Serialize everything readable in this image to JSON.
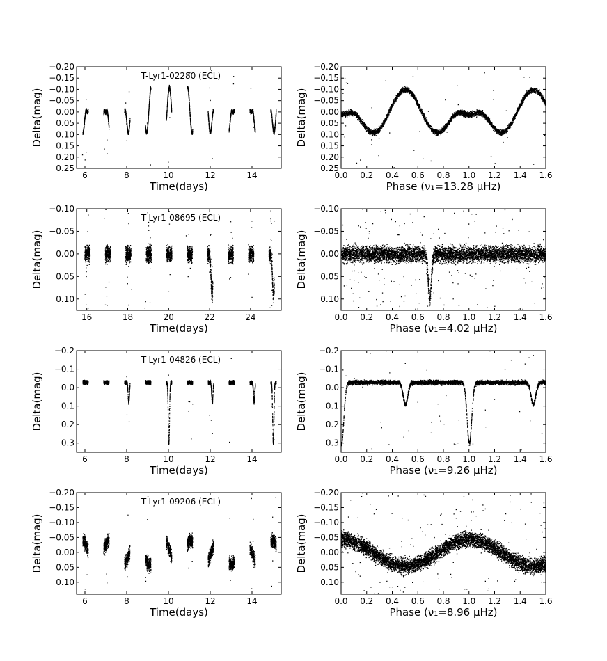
{
  "chart_data": [
    {
      "type": "scatter",
      "panel": "time",
      "star_label": "T-Lyr1-02280 (ECL)",
      "xlabel": "Time(days)",
      "ylabel": "Delta(mag)",
      "xlim": [
        5.6,
        15.4
      ],
      "ylim": [
        0.25,
        -0.2
      ],
      "xticks": [
        6,
        8,
        10,
        12,
        14
      ],
      "xtick_labels": [
        "6",
        "8",
        "10",
        "12",
        "14"
      ],
      "yticks": [
        -0.2,
        -0.15,
        -0.1,
        -0.05,
        0.0,
        0.05,
        0.1,
        0.15,
        0.2,
        0.25
      ],
      "ytick_labels": [
        "−0.20",
        "−0.15",
        "−0.10",
        "−0.05",
        "0.00",
        "0.05",
        "0.10",
        "0.15",
        "0.20",
        "0.25"
      ],
      "observing_nights": [
        6.0,
        7.0,
        8.0,
        9.0,
        10.0,
        11.0,
        12.0,
        13.0,
        14.0,
        15.0
      ],
      "light_curve": {
        "period_days": 0.8715,
        "max_brightness": -0.11,
        "primary_min_depth": 0.2,
        "secondary_min_depth": 0.09,
        "scatter": 0.006
      },
      "grid": false
    },
    {
      "type": "scatter",
      "panel": "phase",
      "xlabel": "Phase (ν₁=13.28 μHz)",
      "ylabel": "Delta(mag)",
      "xlim": [
        0.0,
        1.6
      ],
      "ylim": [
        0.25,
        -0.2
      ],
      "xticks": [
        0.0,
        0.2,
        0.4,
        0.6,
        0.8,
        1.0,
        1.2,
        1.4,
        1.6
      ],
      "xtick_labels": [
        "0.0",
        "0.2",
        "0.4",
        "0.6",
        "0.8",
        "1.0",
        "1.2",
        "1.4",
        "1.6"
      ],
      "yticks": [
        -0.2,
        -0.15,
        -0.1,
        -0.05,
        0.0,
        0.05,
        0.1,
        0.15,
        0.2,
        0.25
      ],
      "ytick_labels": [
        "−0.20",
        "−0.15",
        "−0.10",
        "−0.05",
        "0.00",
        "0.05",
        "0.10",
        "0.15",
        "0.20",
        "0.25"
      ],
      "light_curve": {
        "max_brightness": -0.1,
        "primary_min_depth": 0.2,
        "secondary_min_depth": 0.09,
        "scatter": 0.008,
        "outlier_fraction": 0.01
      },
      "grid": false
    },
    {
      "type": "scatter",
      "panel": "time",
      "star_label": "T-Lyr1-08695 (ECL)",
      "xlabel": "Time(days)",
      "ylabel": "Delta(mag)",
      "xlim": [
        15.5,
        25.5
      ],
      "ylim": [
        0.125,
        -0.1
      ],
      "xticks": [
        16,
        18,
        20,
        22,
        24
      ],
      "xtick_labels": [
        "16",
        "18",
        "20",
        "22",
        "24"
      ],
      "yticks": [
        -0.1,
        -0.05,
        0.0,
        0.05,
        0.1
      ],
      "ytick_labels": [
        "−0.10",
        "−0.05",
        "0.00",
        "0.05",
        "0.10"
      ],
      "observing_nights": [
        16.0,
        17.0,
        18.0,
        19.0,
        20.0,
        21.0,
        22.0,
        23.0,
        24.0,
        25.0
      ],
      "light_curve": {
        "baseline": 0.0,
        "scatter": 0.012,
        "eclipse_depth": 0.09,
        "eclipse_nights": [
          22.0,
          25.0
        ],
        "outlier_fraction": 0.03
      },
      "grid": false
    },
    {
      "type": "scatter",
      "panel": "phase",
      "xlabel": "Phase (ν₁=4.02 μHz)",
      "ylabel": "Delta(mag)",
      "xlim": [
        0.0,
        1.6
      ],
      "ylim": [
        0.125,
        -0.1
      ],
      "xticks": [
        0.0,
        0.2,
        0.4,
        0.6,
        0.8,
        1.0,
        1.2,
        1.4,
        1.6
      ],
      "xtick_labels": [
        "0.0",
        "0.2",
        "0.4",
        "0.6",
        "0.8",
        "1.0",
        "1.2",
        "1.4",
        "1.6"
      ],
      "yticks": [
        -0.1,
        -0.05,
        0.0,
        0.05,
        0.1
      ],
      "ytick_labels": [
        "−0.10",
        "−0.05",
        "0.00",
        "0.05",
        "0.10"
      ],
      "light_curve": {
        "baseline": 0.0,
        "scatter": 0.012,
        "eclipse_phase": 0.69,
        "eclipse_depth": 0.1,
        "outlier_fraction": 0.03
      },
      "grid": false
    },
    {
      "type": "scatter",
      "panel": "time",
      "star_label": "T-Lyr1-04826 (ECL)",
      "xlabel": "Time(days)",
      "ylabel": "Delta(mag)",
      "xlim": [
        5.6,
        15.4
      ],
      "ylim": [
        0.35,
        -0.2
      ],
      "xticks": [
        6,
        8,
        10,
        12,
        14
      ],
      "xtick_labels": [
        "6",
        "8",
        "10",
        "12",
        "14"
      ],
      "yticks": [
        -0.2,
        -0.1,
        0.0,
        0.1,
        0.2,
        0.3
      ],
      "ytick_labels": [
        "−0.2",
        "−0.1",
        "0.0",
        "0.1",
        "0.2",
        "0.3"
      ],
      "observing_nights": [
        6.0,
        7.0,
        8.0,
        9.0,
        10.0,
        11.0,
        12.0,
        13.0,
        14.0,
        15.0
      ],
      "light_curve": {
        "baseline": -0.03,
        "scatter": 0.007,
        "primary_eclipses": [
          10.0,
          15.0
        ],
        "primary_depth": 0.3,
        "secondary_depth": 0.08,
        "outlier_fraction": 0.01
      },
      "grid": false
    },
    {
      "type": "scatter",
      "panel": "phase",
      "xlabel": "Phase (ν₁=9.26 μHz)",
      "ylabel": "Delta(mag)",
      "xlim": [
        0.0,
        1.6
      ],
      "ylim": [
        0.35,
        -0.2
      ],
      "xticks": [
        0.0,
        0.2,
        0.4,
        0.6,
        0.8,
        1.0,
        1.2,
        1.4,
        1.6
      ],
      "xtick_labels": [
        "0.0",
        "0.2",
        "0.4",
        "0.6",
        "0.8",
        "1.0",
        "1.2",
        "1.4",
        "1.6"
      ],
      "yticks": [
        -0.2,
        -0.1,
        0.0,
        0.1,
        0.2,
        0.3
      ],
      "ytick_labels": [
        "−0.2",
        "−0.1",
        "0.0",
        "0.1",
        "0.2",
        "0.3"
      ],
      "light_curve": {
        "baseline": -0.03,
        "scatter": 0.008,
        "primary_phases": [
          0.0,
          1.0
        ],
        "primary_depth": 0.3,
        "secondary_phases": [
          0.5,
          1.5
        ],
        "secondary_depth": 0.09,
        "outlier_fraction": 0.01
      },
      "grid": false
    },
    {
      "type": "scatter",
      "panel": "time",
      "star_label": "T-Lyr1-09206 (ECL)",
      "xlabel": "Time(days)",
      "ylabel": "Delta(mag)",
      "xlim": [
        5.6,
        15.4
      ],
      "ylim": [
        0.14,
        -0.2
      ],
      "xticks": [
        6,
        8,
        10,
        12,
        14
      ],
      "xtick_labels": [
        "6",
        "8",
        "10",
        "12",
        "14"
      ],
      "yticks": [
        -0.2,
        -0.15,
        -0.1,
        -0.05,
        0.0,
        0.05,
        0.1
      ],
      "ytick_labels": [
        "−0.20",
        "−0.15",
        "−0.10",
        "−0.05",
        "0.00",
        "0.05",
        "0.10"
      ],
      "observing_nights": [
        6.0,
        7.0,
        8.0,
        9.0,
        10.0,
        11.0,
        12.0,
        13.0,
        14.0,
        15.0
      ],
      "light_curve": {
        "period_days": 1.3,
        "amplitude": 0.045,
        "scatter": 0.015,
        "outlier_fraction": 0.01
      },
      "grid": false
    },
    {
      "type": "scatter",
      "panel": "phase",
      "xlabel": "Phase (ν₁=8.96 μHz)",
      "ylabel": "Delta(mag)",
      "xlim": [
        0.0,
        1.6
      ],
      "ylim": [
        0.14,
        -0.2
      ],
      "xticks": [
        0.0,
        0.2,
        0.4,
        0.6,
        0.8,
        1.0,
        1.2,
        1.4,
        1.6
      ],
      "xtick_labels": [
        "0.0",
        "0.2",
        "0.4",
        "0.6",
        "0.8",
        "1.0",
        "1.2",
        "1.4",
        "1.6"
      ],
      "yticks": [
        -0.2,
        -0.15,
        -0.1,
        -0.05,
        0.0,
        0.05,
        0.1
      ],
      "ytick_labels": [
        "−0.20",
        "−0.15",
        "−0.10",
        "−0.05",
        "0.00",
        "0.05",
        "0.10"
      ],
      "light_curve": {
        "amplitude": 0.045,
        "faint_phase": 0.5,
        "bright_phase": 1.0,
        "scatter": 0.017,
        "outlier_fraction": 0.02
      },
      "grid": false
    }
  ]
}
